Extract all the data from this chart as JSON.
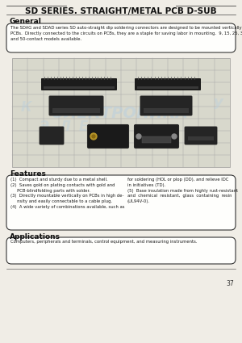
{
  "title": "SD SERIES. STRAIGHT/METAL PCB D-SUB",
  "bg_color": "#f0ede6",
  "page_number": "37",
  "general_heading": "General",
  "general_text": "The SDAG and SDAD series SD auto-straight dip soldering connectors are designed to be mounted vertically on\nPCBs.  Directly connected to the circuits on PCBs, they are a staple for saving labor in mounting.  9, 15, 25, 37,\nand 50-contact models available.",
  "features_heading": "Features",
  "features_text_left": "(1)  Compact and sturdy due to a metal shell.\n(2)  Saves gold on plating contacts with gold and\n     PCB-blindfolding parts with solder.\n(3)  Directly mountable vertically on PCBs in high de-\n     nsity and easily connectable to a cable plug.\n(4)  A wide variety of combinations available, such as",
  "features_text_right": "for soldering (HOL or plop (DD), and relieve IDC\nin initiatives (TD).\n(5)  Base insulation made from highly rust-resistant\nand  chemical  resistant,  glass  containing  resin\n(UL94V-0).",
  "applications_heading": "Applications",
  "applications_text": "Computers, peripherals and terminals, control equipment, and measuring instruments.",
  "watermark_lines": [
    "К",
    "Э",
    "Л",
    "Е",
    "К",
    "Т",
    "Р",
    "О",
    "Н",
    "И",
    "К",
    "А"
  ],
  "watermark_word": "ЭЛЕКТРОНИКА",
  "watermark_color": "#b8cfe0",
  "line_color": "#444444",
  "box_ec": "#333333",
  "box_fc": "#fefefc",
  "grid_fc": "#d8d8cc",
  "grid_line_color": "#aaaaaa",
  "heading_font_size": 6.5,
  "body_font_size": 3.8,
  "title_font_size": 7.5
}
